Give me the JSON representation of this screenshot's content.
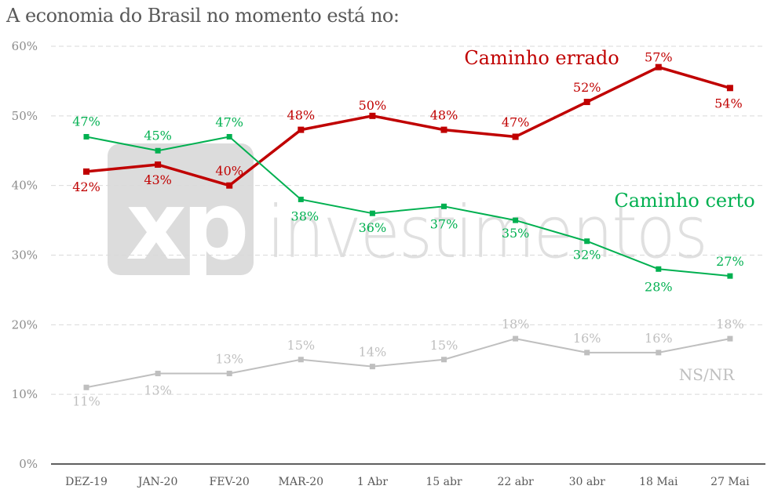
{
  "chart_data": {
    "type": "line",
    "title": "A economia do Brasil no momento está no:",
    "categories": [
      "DEZ-19",
      "JAN-20",
      "FEV-20",
      "MAR-20",
      "1 Abr",
      "15 abr",
      "22 abr",
      "30 abr",
      "18 Mai",
      "27 Mai"
    ],
    "yticks": [
      "0%",
      "10%",
      "20%",
      "30%",
      "40%",
      "50%",
      "60%"
    ],
    "ylim": [
      0,
      60
    ],
    "grid": true,
    "series": [
      {
        "name": "Caminho errado",
        "color": "#c00000",
        "values": [
          42,
          43,
          40,
          48,
          50,
          48,
          47,
          52,
          57,
          54
        ],
        "labels": [
          "42%",
          "43%",
          "40%",
          "48%",
          "50%",
          "48%",
          "47%",
          "52%",
          "57%",
          "54%"
        ]
      },
      {
        "name": "Caminho certo",
        "color": "#00b050",
        "values": [
          47,
          45,
          47,
          38,
          36,
          37,
          35,
          32,
          28,
          27
        ],
        "labels": [
          "47%",
          "45%",
          "47%",
          "38%",
          "36%",
          "37%",
          "35%",
          "32%",
          "28%",
          "27%"
        ]
      },
      {
        "name": "NS/NR",
        "color": "#bfbfbf",
        "values": [
          11,
          13,
          13,
          15,
          14,
          15,
          18,
          16,
          16,
          18
        ],
        "labels": [
          "11%",
          "13%",
          "13%",
          "15%",
          "14%",
          "15%",
          "18%",
          "16%",
          "16%",
          "18%"
        ]
      }
    ]
  },
  "watermark": {
    "brand": "xp",
    "text": "investimentos"
  }
}
